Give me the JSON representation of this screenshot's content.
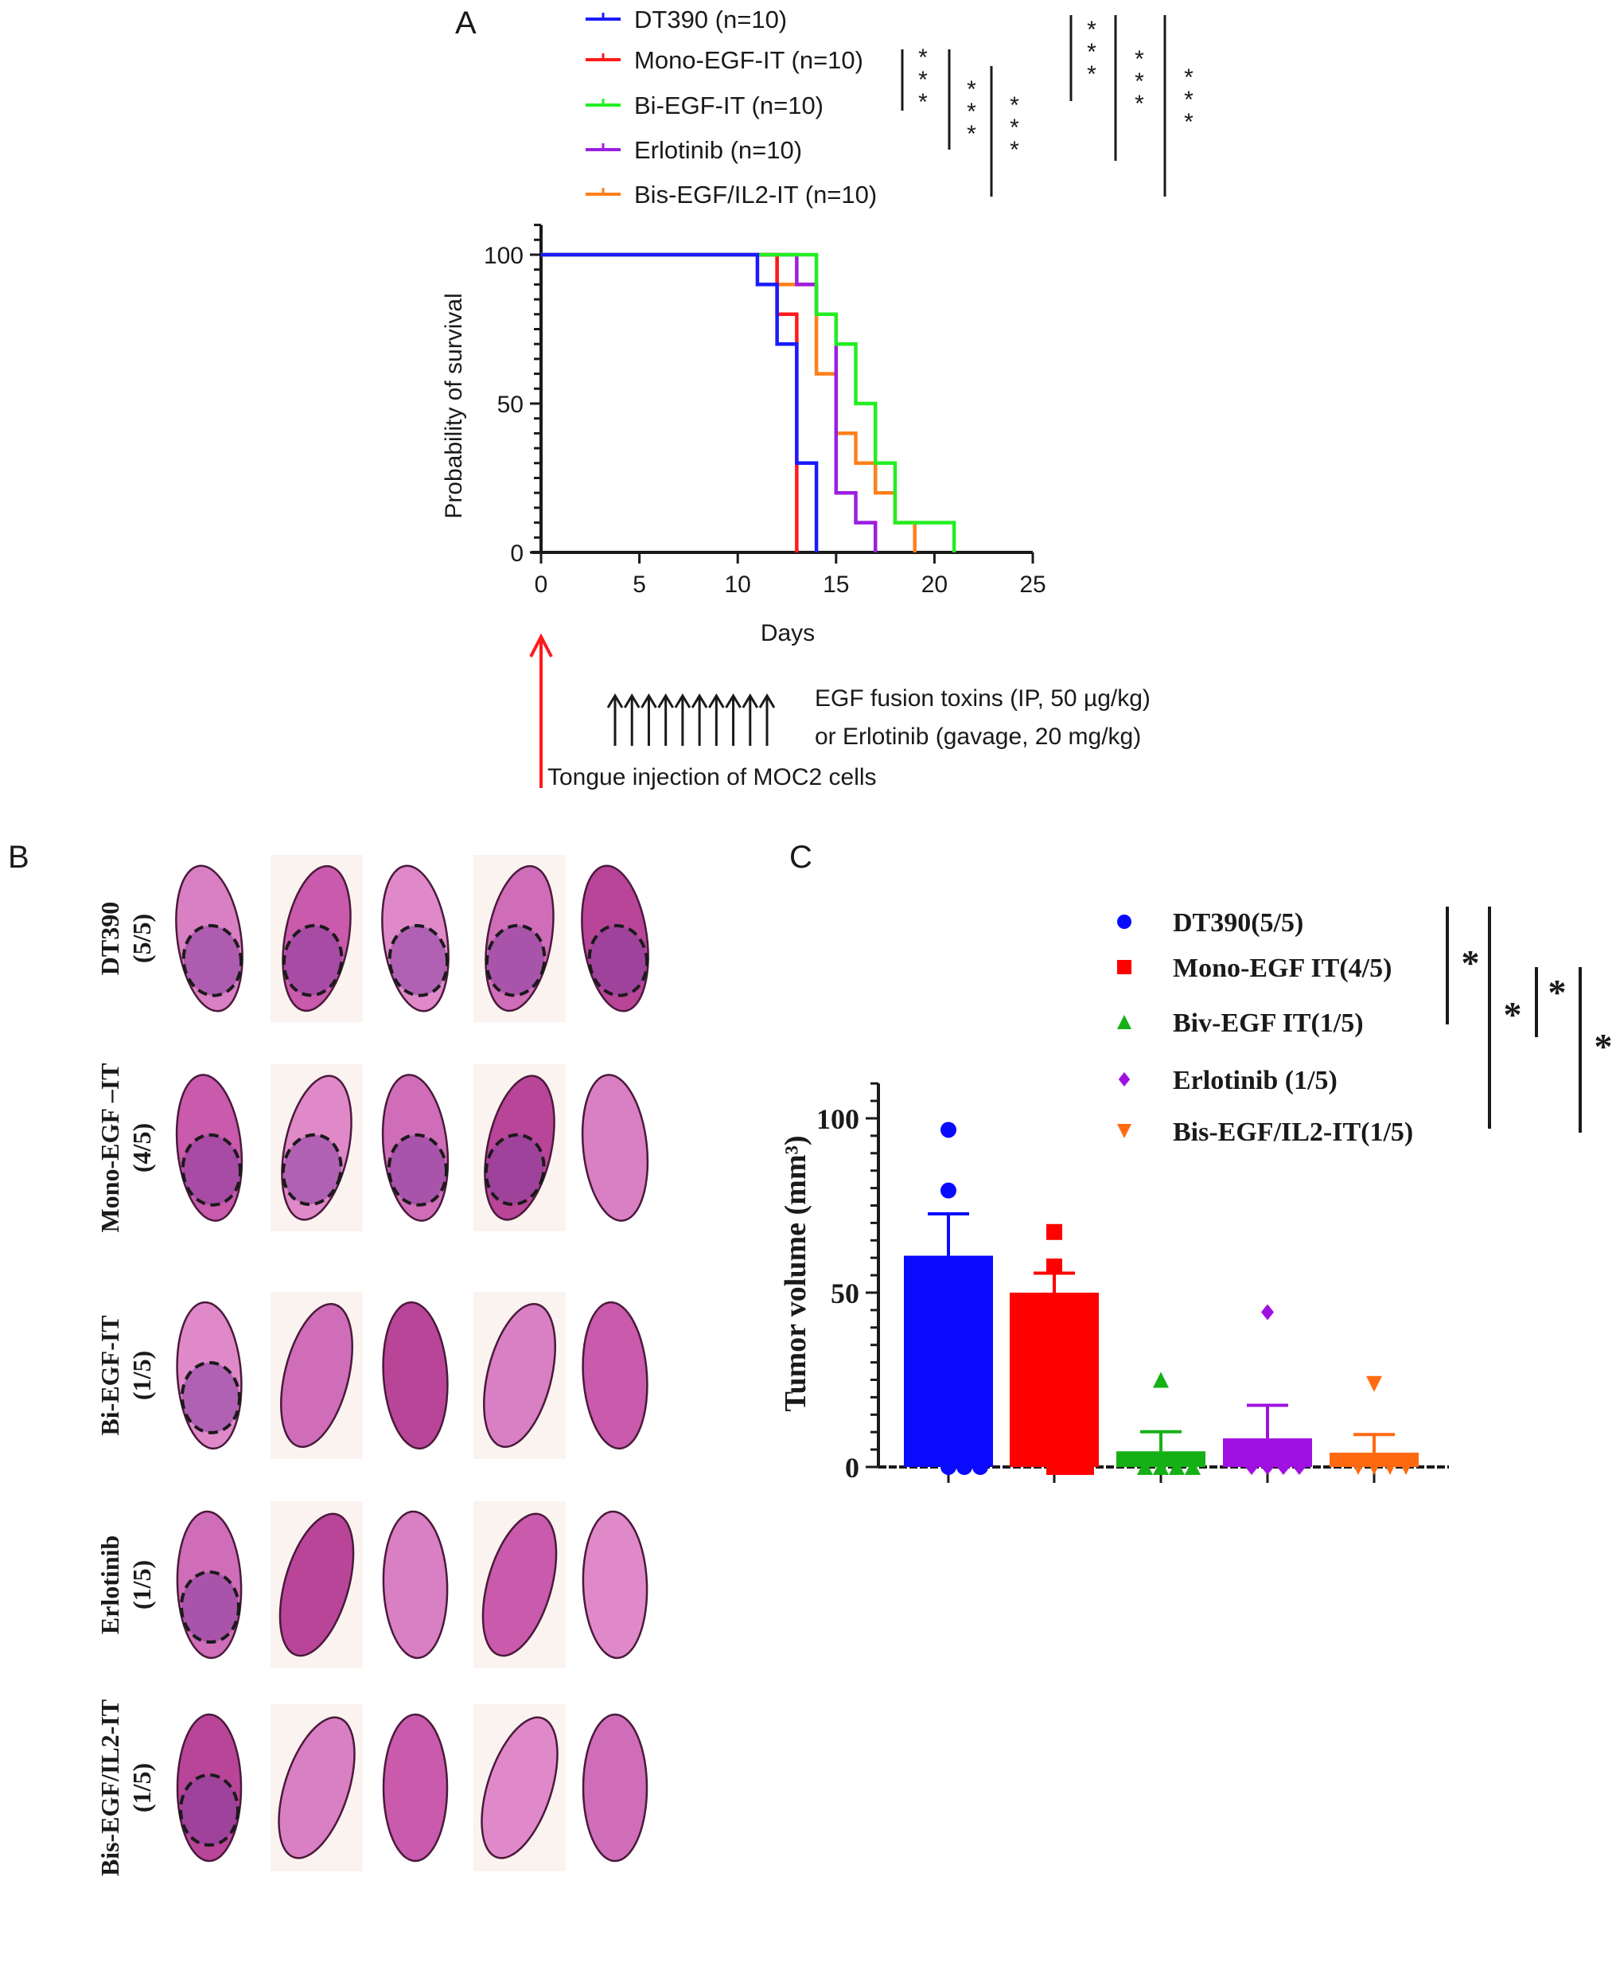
{
  "figure": {
    "panel_labels": {
      "a": "A",
      "b": "B",
      "c": "C"
    }
  },
  "chart_data": [
    {
      "id": "panel-a",
      "type": "line",
      "subtype": "kaplan-meier-step",
      "title": "",
      "xlabel": "Days",
      "ylabel": "Probability of survival",
      "xlim": [
        0,
        25
      ],
      "ylim": [
        0,
        110
      ],
      "xticks": [
        0,
        5,
        10,
        15,
        20,
        25
      ],
      "yticks": [
        0,
        50,
        100
      ],
      "grid": false,
      "legend_position": "top",
      "series": [
        {
          "name": "DT390 (n=10)",
          "color": "#1a1aff",
          "steps": [
            [
              0,
              100
            ],
            [
              11,
              90
            ],
            [
              12,
              70
            ],
            [
              13,
              30
            ],
            [
              14,
              0
            ]
          ]
        },
        {
          "name": "Mono-EGF-IT (n=10)",
          "color": "#ff1a1a",
          "steps": [
            [
              0,
              100
            ],
            [
              12,
              80
            ],
            [
              13,
              0
            ]
          ]
        },
        {
          "name": "Bi-EGF-IT (n=10)",
          "color": "#22ee22",
          "steps": [
            [
              0,
              100
            ],
            [
              14,
              80
            ],
            [
              15,
              70
            ],
            [
              16,
              50
            ],
            [
              17,
              30
            ],
            [
              18,
              10
            ],
            [
              21,
              0
            ]
          ]
        },
        {
          "name": "Erlotinib (n=10)",
          "color": "#9b1fe0",
          "steps": [
            [
              0,
              100
            ],
            [
              13,
              90
            ],
            [
              14,
              80
            ],
            [
              15,
              20
            ],
            [
              16,
              10
            ],
            [
              17,
              0
            ]
          ]
        },
        {
          "name": "Bis-EGF/IL2-IT (n=10)",
          "color": "#ff7f1a",
          "steps": [
            [
              0,
              100
            ],
            [
              12,
              90
            ],
            [
              14,
              60
            ],
            [
              15,
              40
            ],
            [
              16,
              30
            ],
            [
              17,
              20
            ],
            [
              18,
              10
            ],
            [
              19,
              0
            ]
          ]
        }
      ],
      "significance": [
        {
          "label": "***",
          "groups": [
            "Mono-EGF-IT",
            "Bi-EGF-IT"
          ]
        },
        {
          "label": "***",
          "groups": [
            "Mono-EGF-IT",
            "Erlotinib"
          ]
        },
        {
          "label": "***",
          "groups": [
            "Mono-EGF-IT",
            "Bis-EGF/IL2-IT"
          ]
        },
        {
          "label": "***",
          "groups": [
            "DT390",
            "Bi-EGF-IT"
          ]
        },
        {
          "label": "***",
          "groups": [
            "DT390",
            "Erlotinib"
          ]
        },
        {
          "label": "***",
          "groups": [
            "DT390",
            "Bis-EGF/IL2-IT"
          ]
        }
      ],
      "annotations": {
        "injection": "Tongue injection of MOC2 cells",
        "injection_day": 0,
        "treatment_line1": "EGF fusion toxins (IP, 50 µg/kg)",
        "treatment_line2": "or Erlotinib (gavage, 20 mg/kg)",
        "treatment_doses": 10
      }
    },
    {
      "id": "panel-c",
      "type": "bar",
      "title": "",
      "xlabel": "",
      "ylabel": "Tumor volume (mm³)",
      "ylim": [
        0,
        110
      ],
      "yticks": [
        0,
        50,
        100
      ],
      "grid": false,
      "legend_position": "top-right",
      "categories": [
        "DT390(5/5)",
        "Mono-EGF IT(4/5)",
        "Biv-EGF IT(1/5)",
        "Erlotinib  (1/5)",
        "Bis-EGF/IL2-IT(1/5)"
      ],
      "markers": [
        "circle",
        "square",
        "triangle-up",
        "diamond",
        "triangle-down"
      ],
      "colors": [
        "#0a0aff",
        "#ff0000",
        "#16b016",
        "#a010e0",
        "#ff6a10"
      ],
      "values": [
        60.6,
        50.0,
        4.5,
        8.2,
        4.1
      ],
      "sem": [
        12.0,
        5.6,
        5.6,
        9.5,
        5.2
      ],
      "points": [
        [
          96.7,
          79.3,
          0,
          0,
          0
        ],
        [
          67.4,
          57.5,
          0,
          0,
          0
        ],
        [
          25.0,
          0,
          0,
          0,
          0
        ],
        [
          44.4,
          0,
          0,
          0,
          0
        ],
        [
          23.8,
          0,
          0,
          0,
          0
        ]
      ],
      "significance": [
        {
          "label": "*",
          "groups": [
            "DT390",
            "Biv-EGF IT"
          ]
        },
        {
          "label": "*",
          "groups": [
            "DT390",
            "Bis-EGF/IL2-IT"
          ]
        },
        {
          "label": "*",
          "groups": [
            "Mono-EGF IT",
            "Biv-EGF IT"
          ]
        },
        {
          "label": "*",
          "groups": [
            "Mono-EGF IT",
            "Bis-EGF/IL2-IT"
          ]
        }
      ]
    }
  ],
  "panel_b": {
    "rows": [
      {
        "label": "DT390",
        "count": "(5/5)",
        "tumor": [
          true,
          true,
          true,
          true,
          true
        ]
      },
      {
        "label": "Mono-EGF –IT",
        "count": "(4/5)",
        "tumor": [
          true,
          true,
          true,
          true,
          false
        ]
      },
      {
        "label": "Bi-EGF-IT",
        "count": "(1/5)",
        "tumor": [
          true,
          false,
          false,
          false,
          false
        ]
      },
      {
        "label": "Erlotinib",
        "count": "(1/5)",
        "tumor": [
          true,
          false,
          false,
          false,
          false
        ]
      },
      {
        "label": "Bis-EGF/IL2-IT",
        "count": "(1/5)",
        "tumor": [
          true,
          false,
          false,
          false,
          false
        ]
      }
    ]
  }
}
